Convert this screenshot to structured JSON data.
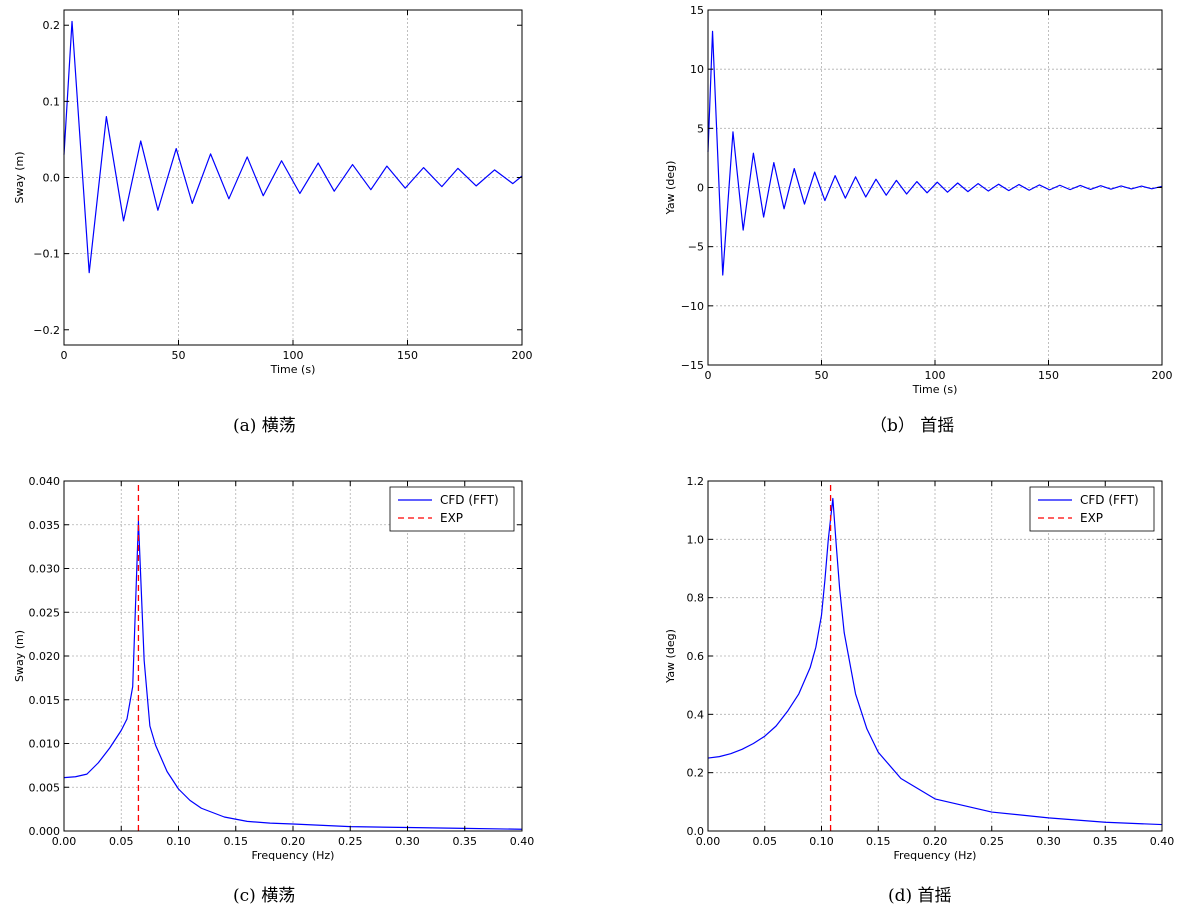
{
  "chart_data": [
    {
      "type": "line",
      "caption": "(a) 横荡",
      "title": "",
      "xlabel": "Time (s)",
      "ylabel": "Sway (m)",
      "xlim": [
        0,
        200
      ],
      "ylim": [
        -0.22,
        0.22
      ],
      "x_ticks": [
        0,
        50,
        100,
        150,
        200
      ],
      "x_tick_labels": [
        "0",
        "50",
        "100",
        "150",
        "200"
      ],
      "y_ticks": [
        -0.2,
        -0.1,
        0.0,
        0.1,
        0.2
      ],
      "y_tick_labels": [
        "−0.2",
        "−0.1",
        "0.0",
        "0.1",
        "0.2"
      ],
      "grid": true,
      "legend": null,
      "series": [
        {
          "color": "#0000ff",
          "style": "solid",
          "x": [
            0,
            3.5,
            11,
            18.5,
            26,
            33.5,
            41,
            49,
            56,
            64,
            72,
            80,
            87,
            95,
            103,
            111,
            118,
            126,
            134,
            141,
            149,
            157,
            165,
            172,
            180,
            188,
            196,
            200
          ],
          "y": [
            0.03,
            0.205,
            -0.125,
            0.08,
            -0.057,
            0.048,
            -0.043,
            0.038,
            -0.034,
            0.031,
            -0.028,
            0.027,
            -0.024,
            0.022,
            -0.021,
            0.019,
            -0.018,
            0.017,
            -0.016,
            0.015,
            -0.014,
            0.013,
            -0.012,
            0.012,
            -0.011,
            0.01,
            -0.008,
            0.002
          ]
        }
      ]
    },
    {
      "type": "line",
      "caption": "（b） 首摇",
      "title": "",
      "xlabel": "Time (s)",
      "ylabel": "Yaw (deg)",
      "xlim": [
        0,
        200
      ],
      "ylim": [
        -15,
        15
      ],
      "x_ticks": [
        0,
        50,
        100,
        150,
        200
      ],
      "x_tick_labels": [
        "0",
        "50",
        "100",
        "150",
        "200"
      ],
      "y_ticks": [
        -15,
        -10,
        -5,
        0,
        5,
        10,
        15
      ],
      "y_tick_labels": [
        "−15",
        "−10",
        "−5",
        "0",
        "5",
        "10",
        "15"
      ],
      "grid": true,
      "legend": null,
      "series": [
        {
          "color": "#0000ff",
          "style": "solid",
          "x": [
            0,
            2,
            6.5,
            11,
            15.5,
            20,
            24.5,
            29,
            33.5,
            38,
            42.5,
            47,
            51.5,
            56,
            60.5,
            65,
            69.5,
            74,
            78.5,
            83,
            87.5,
            92,
            96.5,
            101,
            105.5,
            110,
            114.5,
            119,
            123.5,
            128,
            132.5,
            137,
            141.5,
            146,
            150.5,
            155,
            159.5,
            164,
            168.5,
            173,
            177.5,
            182,
            186.5,
            191,
            195.5,
            200
          ],
          "y": [
            3,
            13.2,
            -7.4,
            4.7,
            -3.6,
            2.9,
            -2.5,
            2.1,
            -1.8,
            1.6,
            -1.4,
            1.3,
            -1.1,
            1.0,
            -0.9,
            0.9,
            -0.8,
            0.7,
            -0.65,
            0.6,
            -0.55,
            0.5,
            -0.45,
            0.45,
            -0.4,
            0.38,
            -0.35,
            0.33,
            -0.3,
            0.28,
            -0.26,
            0.25,
            -0.23,
            0.22,
            -0.2,
            0.19,
            -0.18,
            0.17,
            -0.16,
            0.15,
            -0.14,
            0.13,
            -0.12,
            0.12,
            -0.11,
            0.1
          ]
        }
      ]
    },
    {
      "type": "line",
      "caption": "(c) 横荡",
      "title": "",
      "xlabel": "Frequency (Hz)",
      "ylabel": "Sway (m)",
      "xlim": [
        0,
        0.4
      ],
      "ylim": [
        0,
        0.04
      ],
      "x_ticks": [
        0,
        0.05,
        0.1,
        0.15,
        0.2,
        0.25,
        0.3,
        0.35,
        0.4
      ],
      "x_tick_labels": [
        "0.00",
        "0.05",
        "0.10",
        "0.15",
        "0.20",
        "0.25",
        "0.30",
        "0.35",
        "0.40"
      ],
      "y_ticks": [
        0,
        0.005,
        0.01,
        0.015,
        0.02,
        0.025,
        0.03,
        0.035,
        0.04
      ],
      "y_tick_labels": [
        "0.000",
        "0.005",
        "0.010",
        "0.015",
        "0.020",
        "0.025",
        "0.030",
        "0.035",
        "0.040"
      ],
      "grid": true,
      "legend": {
        "position": "top-right"
      },
      "series": [
        {
          "name": "CFD (FFT)",
          "color": "#0000ff",
          "style": "solid",
          "x": [
            0,
            0.01,
            0.02,
            0.03,
            0.04,
            0.05,
            0.055,
            0.06,
            0.065,
            0.07,
            0.075,
            0.08,
            0.09,
            0.1,
            0.11,
            0.12,
            0.14,
            0.16,
            0.18,
            0.2,
            0.25,
            0.3,
            0.35,
            0.4
          ],
          "y": [
            0.0061,
            0.0062,
            0.0065,
            0.0078,
            0.0095,
            0.0115,
            0.0128,
            0.0165,
            0.0354,
            0.0195,
            0.012,
            0.0098,
            0.0068,
            0.0048,
            0.0035,
            0.0026,
            0.0016,
            0.0011,
            0.0009,
            0.0008,
            0.0005,
            0.0004,
            0.0003,
            0.0002
          ]
        },
        {
          "name": "EXP",
          "color": "#ff0000",
          "style": "dashed",
          "x": [
            0.065,
            0.065
          ],
          "y": [
            0,
            0.04
          ]
        }
      ]
    },
    {
      "type": "line",
      "caption": "(d) 首摇",
      "title": "",
      "xlabel": "Frequency (Hz)",
      "ylabel": "Yaw (deg)",
      "xlim": [
        0,
        0.4
      ],
      "ylim": [
        0,
        1.2
      ],
      "x_ticks": [
        0,
        0.05,
        0.1,
        0.15,
        0.2,
        0.25,
        0.3,
        0.35,
        0.4
      ],
      "x_tick_labels": [
        "0.00",
        "0.05",
        "0.10",
        "0.15",
        "0.20",
        "0.25",
        "0.30",
        "0.35",
        "0.40"
      ],
      "y_ticks": [
        0,
        0.2,
        0.4,
        0.6,
        0.8,
        1.0,
        1.2
      ],
      "y_tick_labels": [
        "0.0",
        "0.2",
        "0.4",
        "0.6",
        "0.8",
        "1.0",
        "1.2"
      ],
      "grid": true,
      "legend": {
        "position": "top-right"
      },
      "series": [
        {
          "name": "CFD (FFT)",
          "color": "#0000ff",
          "style": "solid",
          "x": [
            0,
            0.01,
            0.02,
            0.03,
            0.04,
            0.05,
            0.06,
            0.07,
            0.08,
            0.09,
            0.095,
            0.1,
            0.103,
            0.106,
            0.11,
            0.113,
            0.116,
            0.12,
            0.13,
            0.14,
            0.15,
            0.17,
            0.2,
            0.25,
            0.3,
            0.35,
            0.4
          ],
          "y": [
            0.25,
            0.255,
            0.265,
            0.28,
            0.3,
            0.325,
            0.36,
            0.41,
            0.47,
            0.56,
            0.63,
            0.74,
            0.86,
            1.0,
            1.14,
            0.98,
            0.83,
            0.68,
            0.47,
            0.35,
            0.27,
            0.18,
            0.11,
            0.065,
            0.045,
            0.03,
            0.022
          ]
        },
        {
          "name": "EXP",
          "color": "#ff0000",
          "style": "dashed",
          "x": [
            0.108,
            0.108
          ],
          "y": [
            0,
            1.2
          ]
        }
      ]
    }
  ]
}
